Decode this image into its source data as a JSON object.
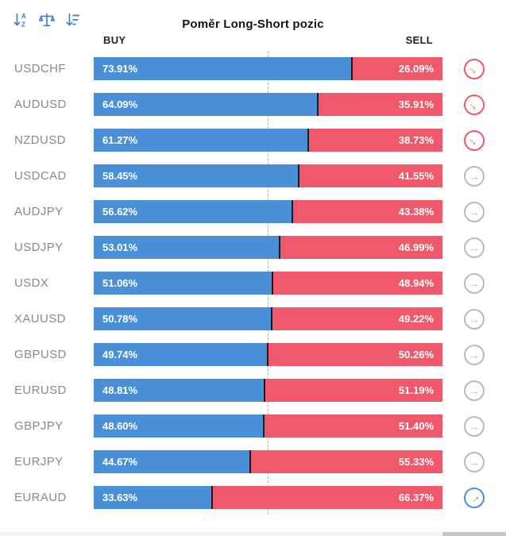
{
  "title": "Poměr Long-Short pozic",
  "columns": {
    "buy": "BUY",
    "sell": "SELL"
  },
  "toolbar": {
    "icons": [
      {
        "name": "sort-alphabetical-icon"
      },
      {
        "name": "balance-scale-icon"
      },
      {
        "name": "sort-amount-icon"
      }
    ]
  },
  "colors": {
    "buy_bar": "#4A90D9",
    "sell_bar": "#F0596B",
    "segment_divider": "#1b1b1b",
    "pair_label": "#8a8a8a",
    "trend_down": "#F0596B",
    "trend_neutral": "#B3BCC4",
    "trend_up": "#4A90D9",
    "toolbar_icon": "#3F7FD0",
    "midline": "#b0b0b0"
  },
  "rows": [
    {
      "pair": "USDCHF",
      "buy_label": "73.91%",
      "sell_label": "26.09%",
      "buy_value": 73.91,
      "trend": "down"
    },
    {
      "pair": "AUDUSD",
      "buy_label": "64.09%",
      "sell_label": "35.91%",
      "buy_value": 64.09,
      "trend": "down"
    },
    {
      "pair": "NZDUSD",
      "buy_label": "61.27%",
      "sell_label": "38.73%",
      "buy_value": 61.27,
      "trend": "down"
    },
    {
      "pair": "USDCAD",
      "buy_label": "58.45%",
      "sell_label": "41.55%",
      "buy_value": 58.45,
      "trend": "neutral"
    },
    {
      "pair": "AUDJPY",
      "buy_label": "56.62%",
      "sell_label": "43.38%",
      "buy_value": 56.62,
      "trend": "neutral"
    },
    {
      "pair": "USDJPY",
      "buy_label": "53.01%",
      "sell_label": "46.99%",
      "buy_value": 53.01,
      "trend": "neutral"
    },
    {
      "pair": "USDX",
      "buy_label": "51.06%",
      "sell_label": "48.94%",
      "buy_value": 51.06,
      "trend": "neutral"
    },
    {
      "pair": "XAUUSD",
      "buy_label": "50.78%",
      "sell_label": "49.22%",
      "buy_value": 50.78,
      "trend": "neutral"
    },
    {
      "pair": "GBPUSD",
      "buy_label": "49.74%",
      "sell_label": "50.26%",
      "buy_value": 49.74,
      "trend": "neutral"
    },
    {
      "pair": "EURUSD",
      "buy_label": "48.81%",
      "sell_label": "51.19%",
      "buy_value": 48.81,
      "trend": "neutral"
    },
    {
      "pair": "GBPJPY",
      "buy_label": "48.60%",
      "sell_label": "51.40%",
      "buy_value": 48.6,
      "trend": "neutral"
    },
    {
      "pair": "EURJPY",
      "buy_label": "44.67%",
      "sell_label": "55.33%",
      "buy_value": 44.67,
      "trend": "neutral"
    },
    {
      "pair": "EURAUD",
      "buy_label": "33.63%",
      "sell_label": "66.37%",
      "buy_value": 33.63,
      "trend": "up"
    }
  ],
  "chart_data": {
    "type": "bar",
    "orientation": "horizontal",
    "stacked": true,
    "title": "Poměr Long-Short pozic",
    "categories": [
      "USDCHF",
      "AUDUSD",
      "NZDUSD",
      "USDCAD",
      "AUDJPY",
      "USDJPY",
      "USDX",
      "XAUUSD",
      "GBPUSD",
      "EURUSD",
      "GBPJPY",
      "EURJPY",
      "EURAUD"
    ],
    "series": [
      {
        "name": "BUY",
        "color": "#4A90D9",
        "values": [
          73.91,
          64.09,
          61.27,
          58.45,
          56.62,
          53.01,
          51.06,
          50.78,
          49.74,
          48.81,
          48.6,
          44.67,
          33.63
        ]
      },
      {
        "name": "SELL",
        "color": "#F0596B",
        "values": [
          26.09,
          35.91,
          38.73,
          41.55,
          43.38,
          46.99,
          48.94,
          49.22,
          50.26,
          51.19,
          51.4,
          55.33,
          66.37
        ]
      }
    ],
    "xlim": [
      0,
      100
    ],
    "reference_line": 50,
    "legend_position": "top",
    "grid": false
  }
}
